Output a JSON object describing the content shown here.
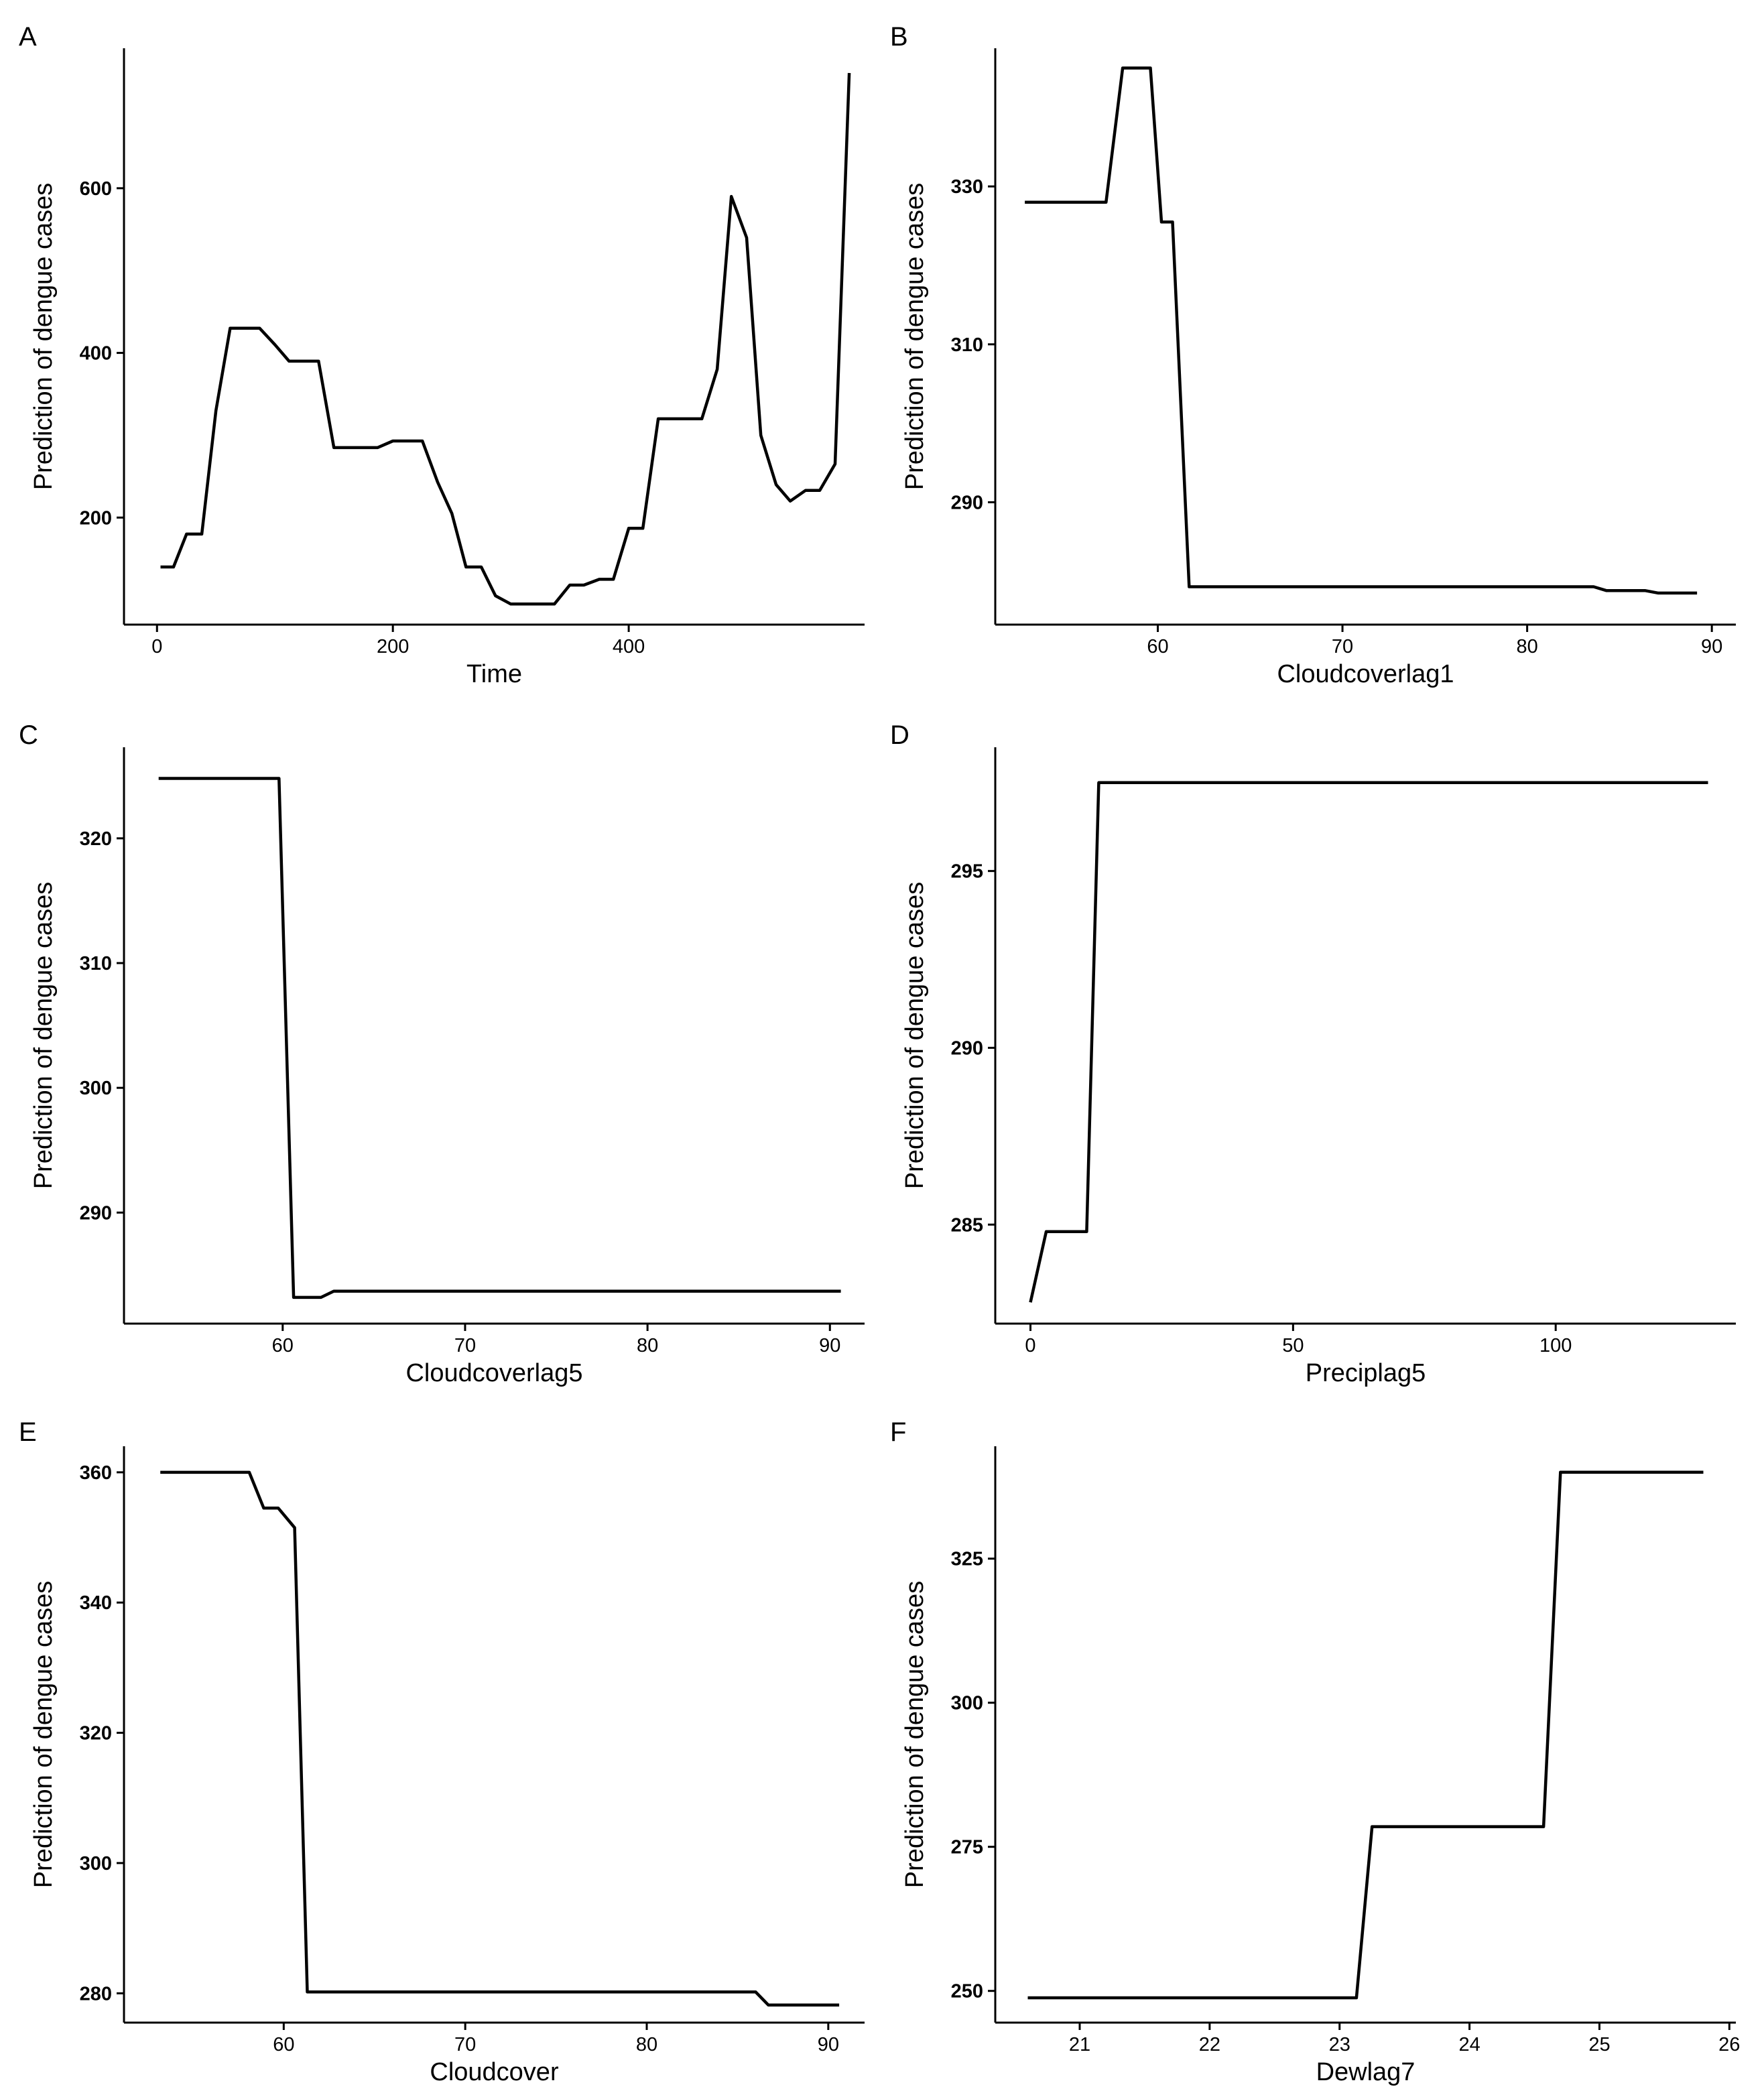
{
  "chart_data": [
    {
      "panel": "A",
      "type": "line",
      "xlabel": "Time",
      "ylabel": "Prediction of dengue cases",
      "xlim": [
        -28,
        600
      ],
      "ylim": [
        70,
        770
      ],
      "xticks": [
        0,
        200,
        400
      ],
      "yticks": [
        200,
        400,
        600
      ],
      "x": [
        3,
        14,
        25,
        38,
        50,
        62,
        75,
        87,
        100,
        112,
        125,
        137,
        150,
        162,
        175,
        187,
        200,
        212,
        225,
        238,
        250,
        262,
        275,
        287,
        300,
        312,
        325,
        337,
        350,
        362,
        375,
        387,
        400,
        412,
        425,
        437,
        450,
        462,
        475,
        487,
        500,
        512,
        525,
        537,
        550,
        562,
        575,
        587
      ],
      "y": [
        140,
        140,
        180,
        180,
        330,
        430,
        430,
        430,
        410,
        390,
        390,
        390,
        285,
        285,
        285,
        285,
        293,
        293,
        293,
        243,
        205,
        140,
        140,
        105,
        95,
        95,
        95,
        95,
        118,
        118,
        125,
        125,
        187,
        187,
        320,
        320,
        320,
        320,
        380,
        590,
        540,
        300,
        240,
        220,
        233,
        233,
        265,
        740
      ]
    },
    {
      "panel": "B",
      "type": "line",
      "xlabel": "Cloudcoverlag1",
      "ylabel": "Prediction of dengue cases",
      "xlim": [
        51.2,
        91.3
      ],
      "ylim": [
        274.5,
        347.5
      ],
      "xticks": [
        60,
        70,
        80,
        90
      ],
      "yticks": [
        290,
        310,
        330
      ],
      "x": [
        52.8,
        57.2,
        58.1,
        59.6,
        60.2,
        60.8,
        61.7,
        83.6,
        84.3,
        86.4,
        87.1,
        89.2
      ],
      "y": [
        328,
        328,
        345,
        345,
        325.5,
        325.5,
        279.3,
        279.3,
        278.8,
        278.8,
        278.5,
        278.5
      ]
    },
    {
      "panel": "C",
      "type": "line",
      "xlabel": "Cloudcoverlag5",
      "ylabel": "Prediction of dengue cases",
      "xlim": [
        51.3,
        91.9
      ],
      "ylim": [
        281.1,
        327.3
      ],
      "xticks": [
        60,
        70,
        80,
        90
      ],
      "yticks": [
        290,
        300,
        310,
        320
      ],
      "x": [
        53.2,
        59.8,
        60.6,
        62.1,
        62.8,
        90.6
      ],
      "y": [
        324.8,
        324.8,
        283.2,
        283.2,
        283.7,
        283.7
      ]
    },
    {
      "panel": "D",
      "type": "line",
      "xlabel": "Preciplag5",
      "ylabel": "Prediction of dengue cases",
      "xlim": [
        -6.7,
        134.3
      ],
      "ylim": [
        282.2,
        298.5
      ],
      "xticks": [
        0,
        50,
        100
      ],
      "yticks": [
        285,
        290,
        295
      ],
      "x": [
        0,
        3,
        10.7,
        13,
        129
      ],
      "y": [
        282.8,
        284.8,
        284.8,
        297.5,
        297.5
      ]
    },
    {
      "panel": "E",
      "type": "line",
      "xlabel": "Cloudcover",
      "ylabel": "Prediction of dengue cases",
      "xlim": [
        51.2,
        92.0
      ],
      "ylim": [
        275.5,
        364.0
      ],
      "xticks": [
        60,
        70,
        80,
        90
      ],
      "yticks": [
        280,
        300,
        320,
        340,
        360
      ],
      "x": [
        53.2,
        58.1,
        58.9,
        59.7,
        60.6,
        61.3,
        86.0,
        86.7,
        90.6
      ],
      "y": [
        360,
        360,
        354.5,
        354.5,
        351.5,
        280.2,
        280.2,
        278.2,
        278.2
      ]
    },
    {
      "panel": "F",
      "type": "line",
      "xlabel": "Dewlag7",
      "ylabel": "Prediction of dengue cases",
      "xlim": [
        20.35,
        26.05
      ],
      "ylim": [
        244.5,
        344.5
      ],
      "xticks": [
        21,
        22,
        23,
        24,
        25,
        26
      ],
      "yticks": [
        250,
        275,
        300,
        325
      ],
      "x": [
        20.6,
        23.13,
        23.25,
        24.57,
        24.7,
        25.8
      ],
      "y": [
        248.8,
        248.8,
        278.5,
        278.5,
        340,
        340
      ]
    }
  ]
}
